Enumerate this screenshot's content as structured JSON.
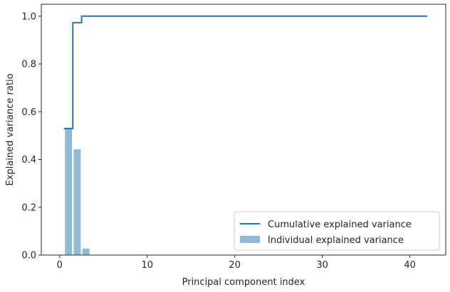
{
  "chart_data": {
    "type": "bar",
    "title": "",
    "xlabel": "Principal component index",
    "ylabel": "Explained variance ratio",
    "xlim": [
      -2.1,
      44.1
    ],
    "ylim": [
      0,
      1.05
    ],
    "xticks": [
      0,
      10,
      20,
      30,
      40
    ],
    "yticks": [
      0.0,
      0.2,
      0.4,
      0.6,
      0.8,
      1.0
    ],
    "xtick_labels": [
      "0",
      "10",
      "20",
      "30",
      "40"
    ],
    "ytick_labels": [
      "0.0",
      "0.2",
      "0.4",
      "0.6",
      "0.8",
      "1.0"
    ],
    "grid": false,
    "legend_position": "lower-right",
    "series": [
      {
        "name": "Individual explained variance",
        "type": "bar",
        "color": "#8fbbd9",
        "x": [
          1,
          2,
          3,
          4,
          5,
          6,
          7,
          8,
          9,
          10,
          11,
          12,
          13,
          14,
          15,
          16,
          17,
          18,
          19,
          20,
          21,
          22,
          23,
          24,
          25,
          26,
          27,
          28,
          29,
          30,
          31,
          32,
          33,
          34,
          35,
          36,
          37,
          38,
          39,
          40,
          41,
          42
        ],
        "values": [
          0.53,
          0.443,
          0.027,
          0,
          0,
          0,
          0,
          0,
          0,
          0,
          0,
          0,
          0,
          0,
          0,
          0,
          0,
          0,
          0,
          0,
          0,
          0,
          0,
          0,
          0,
          0,
          0,
          0,
          0,
          0,
          0,
          0,
          0,
          0,
          0,
          0,
          0,
          0,
          0,
          0,
          0,
          0
        ]
      },
      {
        "name": "Cumulative explained variance",
        "type": "step",
        "color": "#1f77b4",
        "x": [
          1,
          2,
          3,
          4,
          5,
          6,
          7,
          8,
          9,
          10,
          11,
          12,
          13,
          14,
          15,
          16,
          17,
          18,
          19,
          20,
          21,
          22,
          23,
          24,
          25,
          26,
          27,
          28,
          29,
          30,
          31,
          32,
          33,
          34,
          35,
          36,
          37,
          38,
          39,
          40,
          41,
          42
        ],
        "values": [
          0.53,
          0.973,
          1.0,
          1.0,
          1.0,
          1.0,
          1.0,
          1.0,
          1.0,
          1.0,
          1.0,
          1.0,
          1.0,
          1.0,
          1.0,
          1.0,
          1.0,
          1.0,
          1.0,
          1.0,
          1.0,
          1.0,
          1.0,
          1.0,
          1.0,
          1.0,
          1.0,
          1.0,
          1.0,
          1.0,
          1.0,
          1.0,
          1.0,
          1.0,
          1.0,
          1.0,
          1.0,
          1.0,
          1.0,
          1.0,
          1.0,
          1.0
        ]
      }
    ]
  }
}
